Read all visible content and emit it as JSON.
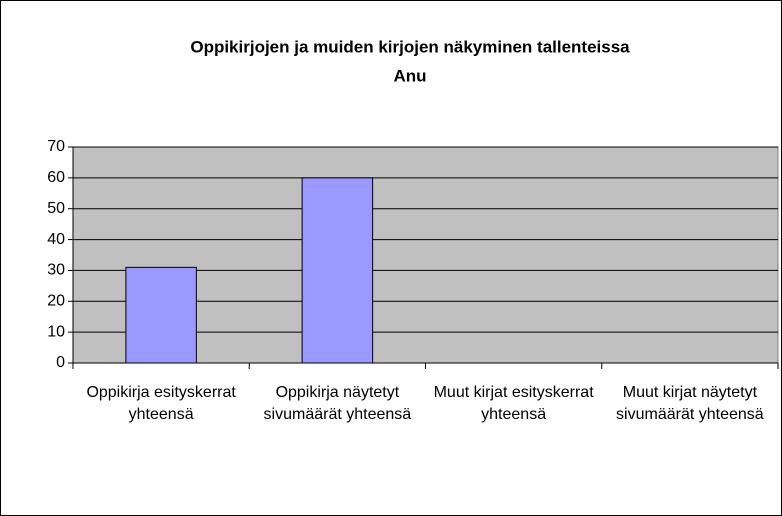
{
  "chart_data": {
    "type": "bar",
    "title": "Oppikirjojen ja muiden kirjojen näkyminen tallenteissa",
    "subtitle": "Anu",
    "categories": [
      "Oppikirja esityskerrat yhteensä",
      "Oppikirja näytetyt sivumäärät yhteensä",
      "Muut kirjat esityskerrat yhteensä",
      "Muut kirjat näytetyt sivumäärät yhteensä"
    ],
    "values": [
      31,
      60,
      0,
      0
    ],
    "color": "#9999ff",
    "ylim": [
      0,
      70
    ],
    "yticks": [
      0,
      10,
      20,
      30,
      40,
      50,
      60,
      70
    ],
    "grid": true
  }
}
